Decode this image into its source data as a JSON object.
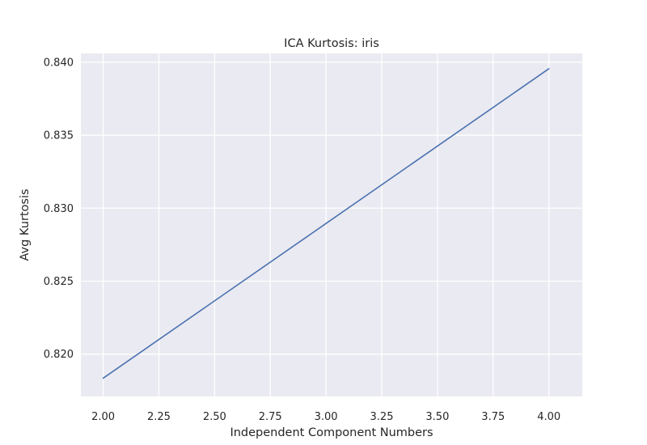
{
  "chart_data": {
    "type": "line",
    "title": "ICA Kurtosis: iris",
    "xlabel": "Independent Component Numbers",
    "ylabel": "Avg Kurtosis",
    "x": [
      2,
      3,
      4
    ],
    "series": [
      {
        "values": [
          0.81835,
          0.82895,
          0.83955
        ]
      }
    ],
    "xlim": [
      1.9,
      4.15
    ],
    "ylim": [
      0.8171,
      0.8406
    ],
    "xticks": [
      2.0,
      2.25,
      2.5,
      2.75,
      3.0,
      3.25,
      3.5,
      3.75,
      4.0
    ],
    "xtick_labels": [
      "2.00",
      "2.25",
      "2.50",
      "2.75",
      "3.00",
      "3.25",
      "3.50",
      "3.75",
      "4.00"
    ],
    "yticks": [
      0.82,
      0.825,
      0.83,
      0.835,
      0.84
    ],
    "ytick_labels": [
      "0.820",
      "0.825",
      "0.830",
      "0.835",
      "0.840"
    ],
    "grid": true,
    "legend": "none",
    "colors": {
      "background": "#eaeaf2",
      "grid": "#ffffff",
      "line": "#4c72b0",
      "text": "#262626"
    }
  }
}
